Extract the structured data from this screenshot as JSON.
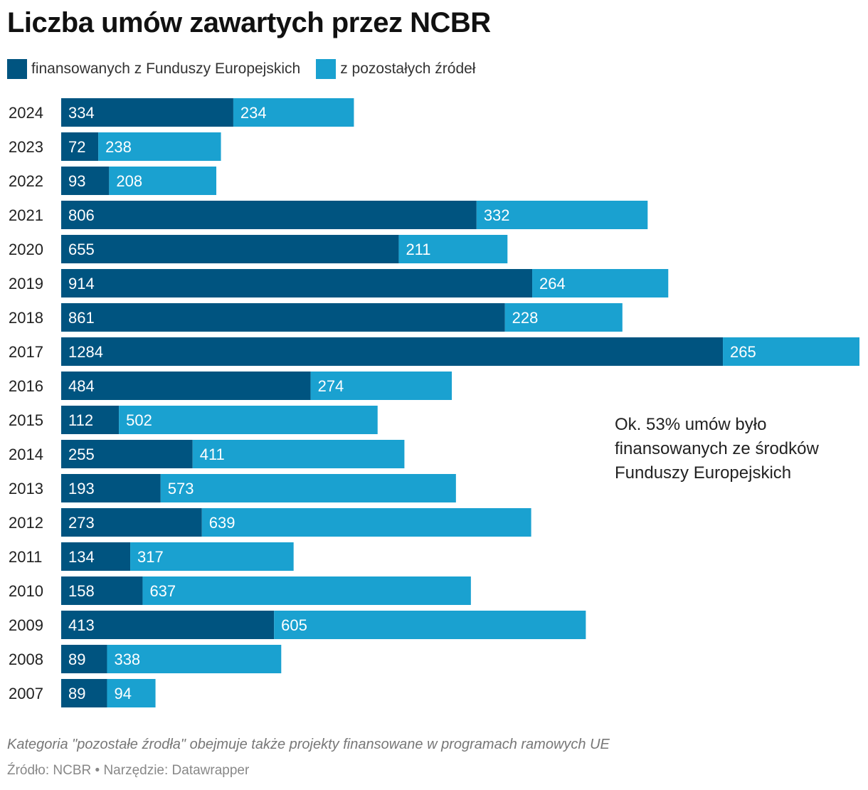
{
  "chart_data": {
    "type": "bar",
    "orientation": "horizontal",
    "stacked": true,
    "title": "Liczba umów zawartych przez NCBR",
    "categories": [
      "2024",
      "2023",
      "2022",
      "2021",
      "2020",
      "2019",
      "2018",
      "2017",
      "2016",
      "2015",
      "2014",
      "2013",
      "2012",
      "2011",
      "2010",
      "2009",
      "2008",
      "2007"
    ],
    "series": [
      {
        "name": "finansowanych z Funduszy Europejskich",
        "color": "#005480",
        "values": [
          334,
          72,
          93,
          806,
          655,
          914,
          861,
          1284,
          484,
          112,
          255,
          193,
          273,
          134,
          158,
          413,
          89,
          89
        ]
      },
      {
        "name": "z pozostałych źródeł",
        "color": "#1aa1d0",
        "values": [
          234,
          238,
          208,
          332,
          211,
          264,
          228,
          265,
          274,
          502,
          411,
          573,
          639,
          317,
          637,
          605,
          338,
          94
        ]
      }
    ],
    "xlim": [
      0,
      1549
    ],
    "legend_position": "top-left",
    "annotation": "Ok. 53% umów było finansowanych ze środków Funduszy Europejskich",
    "note": "Kategoria \"pozostałe źrodła\" obejmuje także projekty finansowane w programach ramowych UE",
    "source": "Źródło: NCBR • Narzędzie: Datawrapper"
  }
}
